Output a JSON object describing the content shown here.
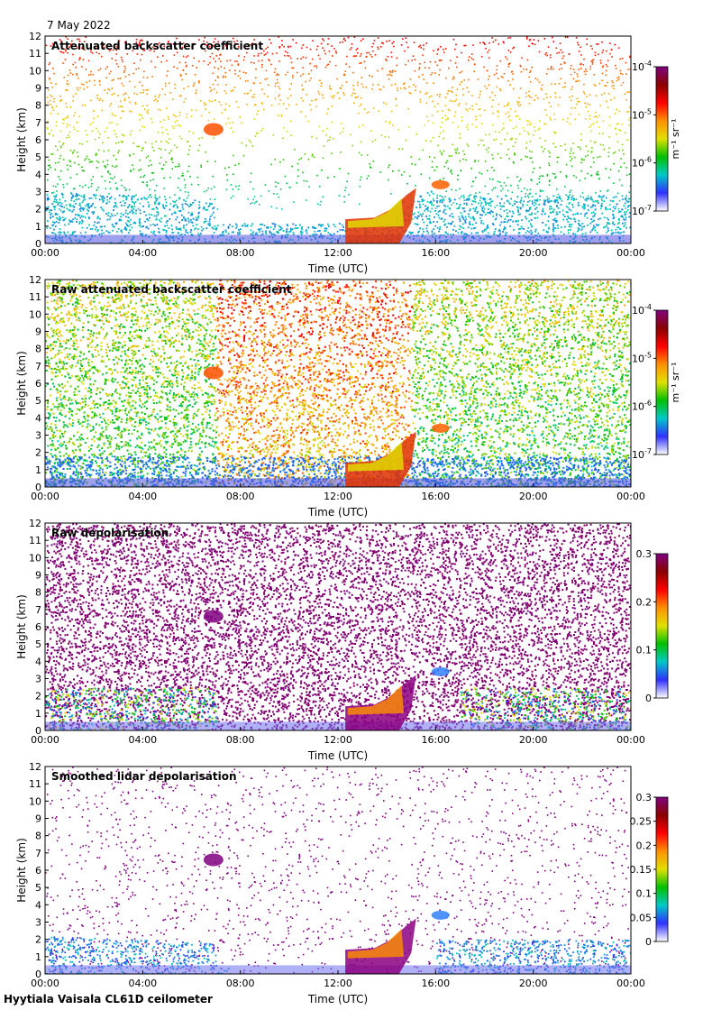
{
  "date": "7 May 2022",
  "footer": "Hyytiala Vaisala CL61D ceilometer",
  "colors": {
    "scale": [
      "#ffffff",
      "#3030ff",
      "#00c8c8",
      "#00c000",
      "#e0e000",
      "#ff9000",
      "#ff0000",
      "#8b0000",
      "#800080"
    ]
  },
  "chart_data": [
    {
      "type": "heatmap",
      "title": "Attenuated backscatter coefficient",
      "xlabel": "Time (UTC)",
      "ylabel": "Height (km)",
      "x_ticks": [
        "00:00",
        "04:00",
        "08:00",
        "12:00",
        "16:00",
        "20:00",
        "00:00"
      ],
      "y_ticks": [
        "0",
        "1",
        "2",
        "3",
        "4",
        "5",
        "6",
        "7",
        "8",
        "9",
        "10",
        "11",
        "12"
      ],
      "ylim": [
        0,
        12
      ],
      "colorbar": {
        "scale": "log",
        "range": [
          1e-07,
          0.0001
        ],
        "units": "m⁻¹ sr⁻¹",
        "tick_labels": [
          {
            "base": "10",
            "exp": "-7"
          },
          {
            "base": "10",
            "exp": "-6"
          },
          {
            "base": "10",
            "exp": "-5"
          },
          {
            "base": "10",
            "exp": "-4"
          }
        ]
      }
    },
    {
      "type": "heatmap",
      "title": "Raw attenuated backscatter coefficient",
      "xlabel": "Time (UTC)",
      "ylabel": "Height (km)",
      "x_ticks": [
        "00:00",
        "04:00",
        "08:00",
        "12:00",
        "16:00",
        "20:00",
        "00:00"
      ],
      "y_ticks": [
        "0",
        "1",
        "2",
        "3",
        "4",
        "5",
        "6",
        "7",
        "8",
        "9",
        "10",
        "11",
        "12"
      ],
      "ylim": [
        0,
        12
      ],
      "colorbar": {
        "scale": "log",
        "range": [
          1e-07,
          0.0001
        ],
        "units": "m⁻¹ sr⁻¹",
        "tick_labels": [
          {
            "base": "10",
            "exp": "-7"
          },
          {
            "base": "10",
            "exp": "-6"
          },
          {
            "base": "10",
            "exp": "-5"
          },
          {
            "base": "10",
            "exp": "-4"
          }
        ]
      }
    },
    {
      "type": "heatmap",
      "title": "Raw depolarisation",
      "xlabel": "Time (UTC)",
      "ylabel": "Height (km)",
      "x_ticks": [
        "00:00",
        "04:00",
        "08:00",
        "12:00",
        "16:00",
        "20:00",
        "00:00"
      ],
      "y_ticks": [
        "0",
        "1",
        "2",
        "3",
        "4",
        "5",
        "6",
        "7",
        "8",
        "9",
        "10",
        "11",
        "12"
      ],
      "ylim": [
        0,
        12
      ],
      "colorbar": {
        "scale": "linear",
        "range": [
          0,
          0.3
        ],
        "units": "",
        "tick_labels": [
          {
            "base": "0"
          },
          {
            "base": "0.1"
          },
          {
            "base": "0.2"
          },
          {
            "base": "0.3"
          }
        ]
      }
    },
    {
      "type": "heatmap",
      "title": "Smoothed lidar depolarisation",
      "xlabel": "Time (UTC)",
      "ylabel": "Height (km)",
      "x_ticks": [
        "00:00",
        "04:00",
        "08:00",
        "12:00",
        "16:00",
        "20:00",
        "00:00"
      ],
      "y_ticks": [
        "0",
        "1",
        "2",
        "3",
        "4",
        "5",
        "6",
        "7",
        "8",
        "9",
        "10",
        "11",
        "12"
      ],
      "ylim": [
        0,
        12
      ],
      "colorbar": {
        "scale": "linear",
        "range": [
          0,
          0.3
        ],
        "units": "",
        "tick_labels": [
          {
            "base": "0"
          },
          {
            "base": "0.05"
          },
          {
            "base": "0.1"
          },
          {
            "base": "0.15"
          },
          {
            "base": "0.2"
          },
          {
            "base": "0.25"
          },
          {
            "base": "0.3"
          }
        ]
      }
    }
  ]
}
